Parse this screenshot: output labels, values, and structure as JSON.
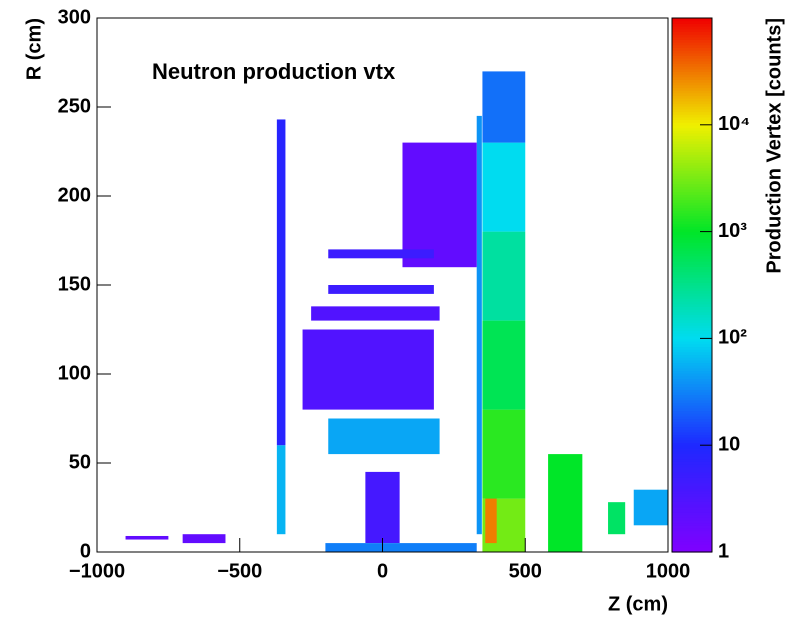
{
  "chart_data": {
    "type": "heatmap",
    "title": "Neutron production vtx",
    "xlabel": "Z (cm)",
    "ylabel": "R (cm)",
    "zlabel": "Production Vertex [counts]",
    "xlim": [
      -1000,
      1000
    ],
    "ylim": [
      0,
      300
    ],
    "zlim": [
      1,
      100000
    ],
    "zscale": "log",
    "xticks": [
      {
        "value": -1000,
        "label": "−1000"
      },
      {
        "value": -500,
        "label": "−500"
      },
      0,
      500,
      1000
    ],
    "yticks": [
      0,
      50,
      100,
      150,
      200,
      250,
      300
    ],
    "zticks": [
      1,
      10,
      {
        "value": 100,
        "label": "10²"
      },
      {
        "value": 1000,
        "label": "10³"
      },
      {
        "value": 10000,
        "label": "10⁴"
      }
    ],
    "cells": [
      {
        "x": [
          350,
          500
        ],
        "y": [
          0,
          30
        ],
        "value": 3000
      },
      {
        "x": [
          360,
          400
        ],
        "y": [
          5,
          40
        ],
        "value": 30000
      },
      {
        "x": [
          350,
          500
        ],
        "y": [
          30,
          80
        ],
        "value": 1500
      },
      {
        "x": [
          350,
          500
        ],
        "y": [
          80,
          130
        ],
        "value": 600
      },
      {
        "x": [
          350,
          500
        ],
        "y": [
          130,
          180
        ],
        "value": 250
      },
      {
        "x": [
          350,
          500
        ],
        "y": [
          180,
          230
        ],
        "value": 100
      },
      {
        "x": [
          350,
          500
        ],
        "y": [
          230,
          270
        ],
        "value": 25
      },
      {
        "x": [
          330,
          348
        ],
        "y": [
          10,
          245
        ],
        "value": 40
      },
      {
        "x": [
          -370,
          -340
        ],
        "y": [
          10,
          60
        ],
        "value": 60
      },
      {
        "x": [
          -370,
          -340
        ],
        "y": [
          60,
          243
        ],
        "value": 8
      },
      {
        "x": [
          -280,
          180
        ],
        "y": [
          80,
          125
        ],
        "value": 3
      },
      {
        "x": [
          70,
          330
        ],
        "y": [
          160,
          230
        ],
        "value": 2
      },
      {
        "x": [
          -190,
          180
        ],
        "y": [
          165,
          170
        ],
        "value": 5
      },
      {
        "x": [
          -190,
          180
        ],
        "y": [
          145,
          150
        ],
        "value": 5
      },
      {
        "x": [
          -250,
          200
        ],
        "y": [
          130,
          138
        ],
        "value": 3
      },
      {
        "x": [
          -190,
          200
        ],
        "y": [
          55,
          75
        ],
        "value": 50
      },
      {
        "x": [
          -60,
          60
        ],
        "y": [
          5,
          45
        ],
        "value": 4
      },
      {
        "x": [
          -200,
          330
        ],
        "y": [
          0,
          5
        ],
        "value": 30
      },
      {
        "x": [
          580,
          700
        ],
        "y": [
          0,
          55
        ],
        "value": 1000
      },
      {
        "x": [
          790,
          850
        ],
        "y": [
          10,
          28
        ],
        "value": 500
      },
      {
        "x": [
          880,
          1000
        ],
        "y": [
          15,
          35
        ],
        "value": 50
      },
      {
        "x": [
          -700,
          -550
        ],
        "y": [
          5,
          10
        ],
        "value": 2
      },
      {
        "x": [
          -900,
          -750
        ],
        "y": [
          7,
          9
        ],
        "value": 2
      }
    ]
  }
}
